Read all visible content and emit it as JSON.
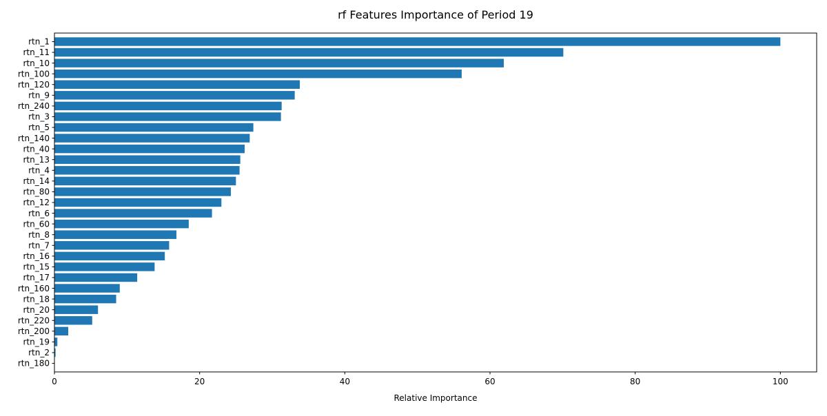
{
  "chart_data": {
    "type": "bar",
    "orientation": "horizontal",
    "title": "rf Features Importance of Period 19",
    "xlabel": "Relative Importance",
    "ylabel": "",
    "xlim": [
      0,
      105
    ],
    "xticks": [
      0,
      20,
      40,
      60,
      80,
      100
    ],
    "xtick_labels": [
      "0",
      "20",
      "40",
      "60",
      "80",
      "100"
    ],
    "grid": false,
    "bar_color": "#1f77b4",
    "categories": [
      "rtn_1",
      "rtn_11",
      "rtn_10",
      "rtn_100",
      "rtn_120",
      "rtn_9",
      "rtn_240",
      "rtn_3",
      "rtn_5",
      "rtn_140",
      "rtn_40",
      "rtn_13",
      "rtn_4",
      "rtn_14",
      "rtn_80",
      "rtn_12",
      "rtn_6",
      "rtn_60",
      "rtn_8",
      "rtn_7",
      "rtn_16",
      "rtn_15",
      "rtn_17",
      "rtn_160",
      "rtn_18",
      "rtn_20",
      "rtn_220",
      "rtn_200",
      "rtn_19",
      "rtn_2",
      "rtn_180"
    ],
    "values": [
      100,
      70.1,
      61.9,
      56.1,
      33.8,
      33.1,
      31.3,
      31.2,
      27.4,
      26.9,
      26.2,
      25.6,
      25.5,
      25.0,
      24.3,
      23.0,
      21.7,
      18.5,
      16.8,
      15.8,
      15.2,
      13.8,
      11.4,
      9.0,
      8.5,
      6.0,
      5.2,
      1.9,
      0.4,
      0.15,
      0.0
    ]
  }
}
